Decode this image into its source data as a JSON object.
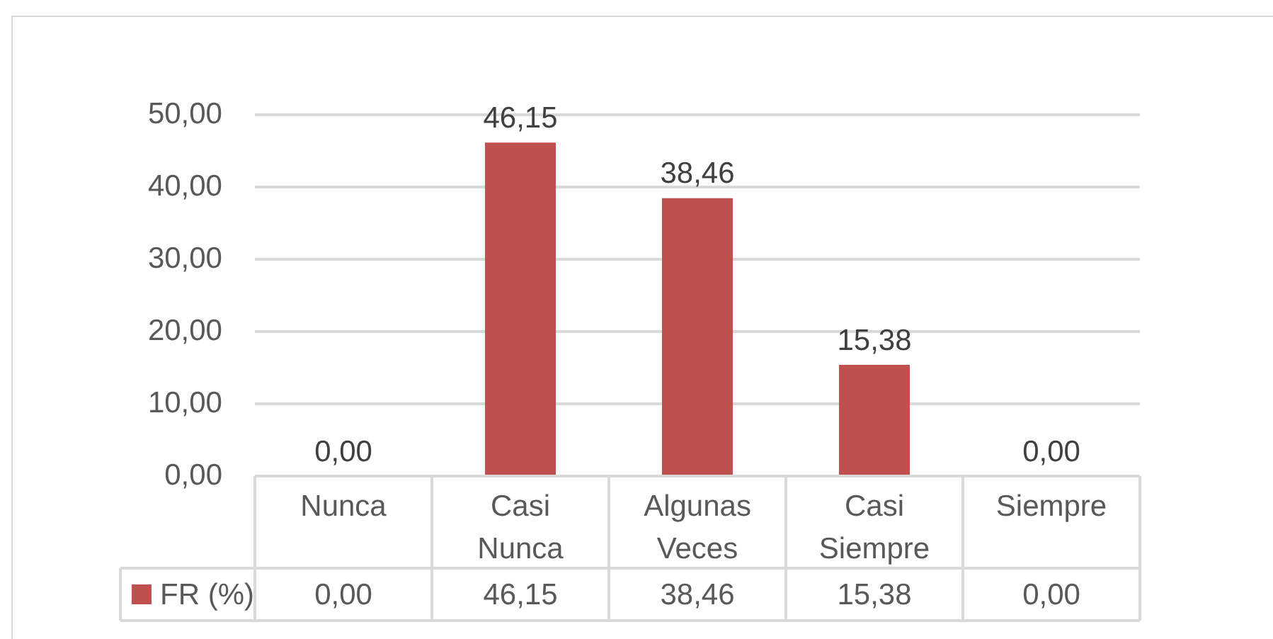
{
  "chart_data": {
    "type": "bar",
    "categories": [
      "Nunca",
      "Casi Nunca",
      "Algunas Veces",
      "Casi Siempre",
      "Siempre"
    ],
    "series": [
      {
        "name": "FR (%)",
        "color": "#c0504d",
        "values": [
          0,
          46.15,
          38.46,
          15.38,
          0
        ],
        "value_labels": [
          "0,00",
          "46,15",
          "38,46",
          "15,38",
          "0,00"
        ]
      }
    ],
    "ylim": [
      0,
      50
    ],
    "yticks": [
      {
        "value": 0,
        "label": "0,00"
      },
      {
        "value": 10,
        "label": "10,00"
      },
      {
        "value": 20,
        "label": "20,00"
      },
      {
        "value": 30,
        "label": "30,00"
      },
      {
        "value": 40,
        "label": "40,00"
      },
      {
        "value": 50,
        "label": "50,00"
      }
    ],
    "grid": "y",
    "legend": "bottom left"
  }
}
